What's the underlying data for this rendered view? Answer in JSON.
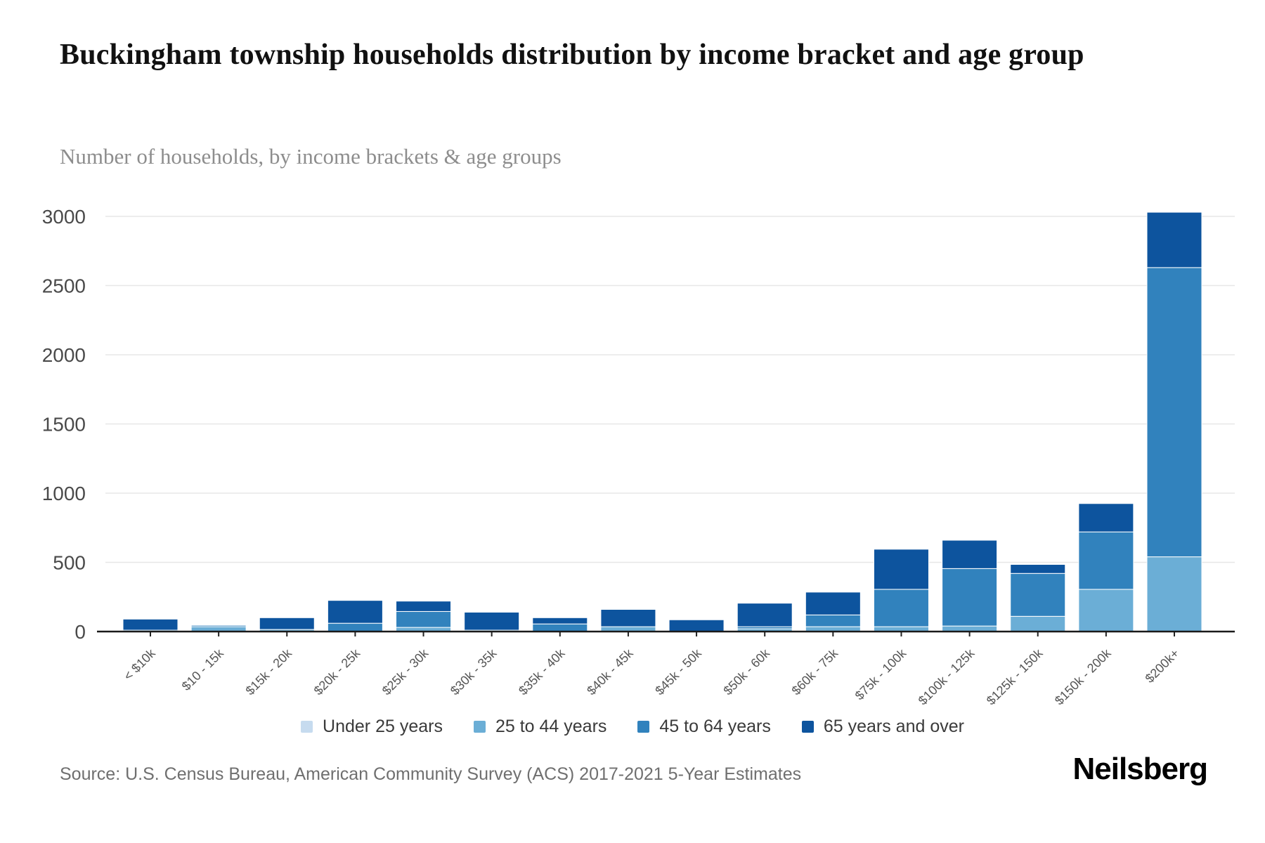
{
  "title": "Buckingham township households distribution by income bracket and age group",
  "subtitle": "Number of households, by income brackets & age groups",
  "source": "Source: U.S. Census Bureau, American Community Survey (ACS) 2017-2021 5-Year Estimates",
  "brand": "Neilsberg",
  "chart_data": {
    "type": "bar",
    "stacked": true,
    "title": "Buckingham township households distribution by income bracket and age group",
    "xlabel": "",
    "ylabel": "Number of households",
    "ylim": [
      0,
      3000
    ],
    "yticks": [
      0,
      500,
      1000,
      1500,
      2000,
      2500,
      3000
    ],
    "grid": true,
    "legend_position": "bottom",
    "categories": [
      "< $10k",
      "$10 - 15k",
      "$15k - 20k",
      "$20k - 25k",
      "$25k - 30k",
      "$30k - 35k",
      "$35k - 40k",
      "$40k - 45k",
      "$45k - 50k",
      "$50k - 60k",
      "$60k - 75k",
      "$75k - 100k",
      "$100k - 125k",
      "$125k - 150k",
      "$150k - 200k",
      "$200k+"
    ],
    "series": [
      {
        "name": "Under 25 years",
        "color": "#c6dbef",
        "values": [
          0,
          0,
          0,
          0,
          0,
          0,
          0,
          0,
          0,
          0,
          0,
          0,
          0,
          0,
          0,
          0
        ]
      },
      {
        "name": "25 to 44 years",
        "color": "#6baed6",
        "values": [
          0,
          35,
          15,
          0,
          30,
          10,
          0,
          35,
          0,
          20,
          35,
          35,
          40,
          110,
          305,
          540
        ]
      },
      {
        "name": "45 to 64 years",
        "color": "#3182bd",
        "values": [
          10,
          10,
          0,
          60,
          115,
          0,
          55,
          0,
          0,
          15,
          85,
          270,
          415,
          310,
          415,
          2090
        ]
      },
      {
        "name": "65 years and over",
        "color": "#0d549e",
        "values": [
          80,
          0,
          85,
          165,
          75,
          130,
          45,
          125,
          85,
          170,
          165,
          290,
          205,
          65,
          205,
          400
        ]
      }
    ],
    "totals": [
      90,
      45,
      100,
      225,
      220,
      140,
      100,
      160,
      85,
      205,
      285,
      595,
      660,
      485,
      925,
      3030
    ]
  },
  "colors": {
    "axis": "#1a1a1a",
    "gridline": "#e7e7e7",
    "tick_label": "#4a4a4a",
    "x_label": "#555555"
  }
}
